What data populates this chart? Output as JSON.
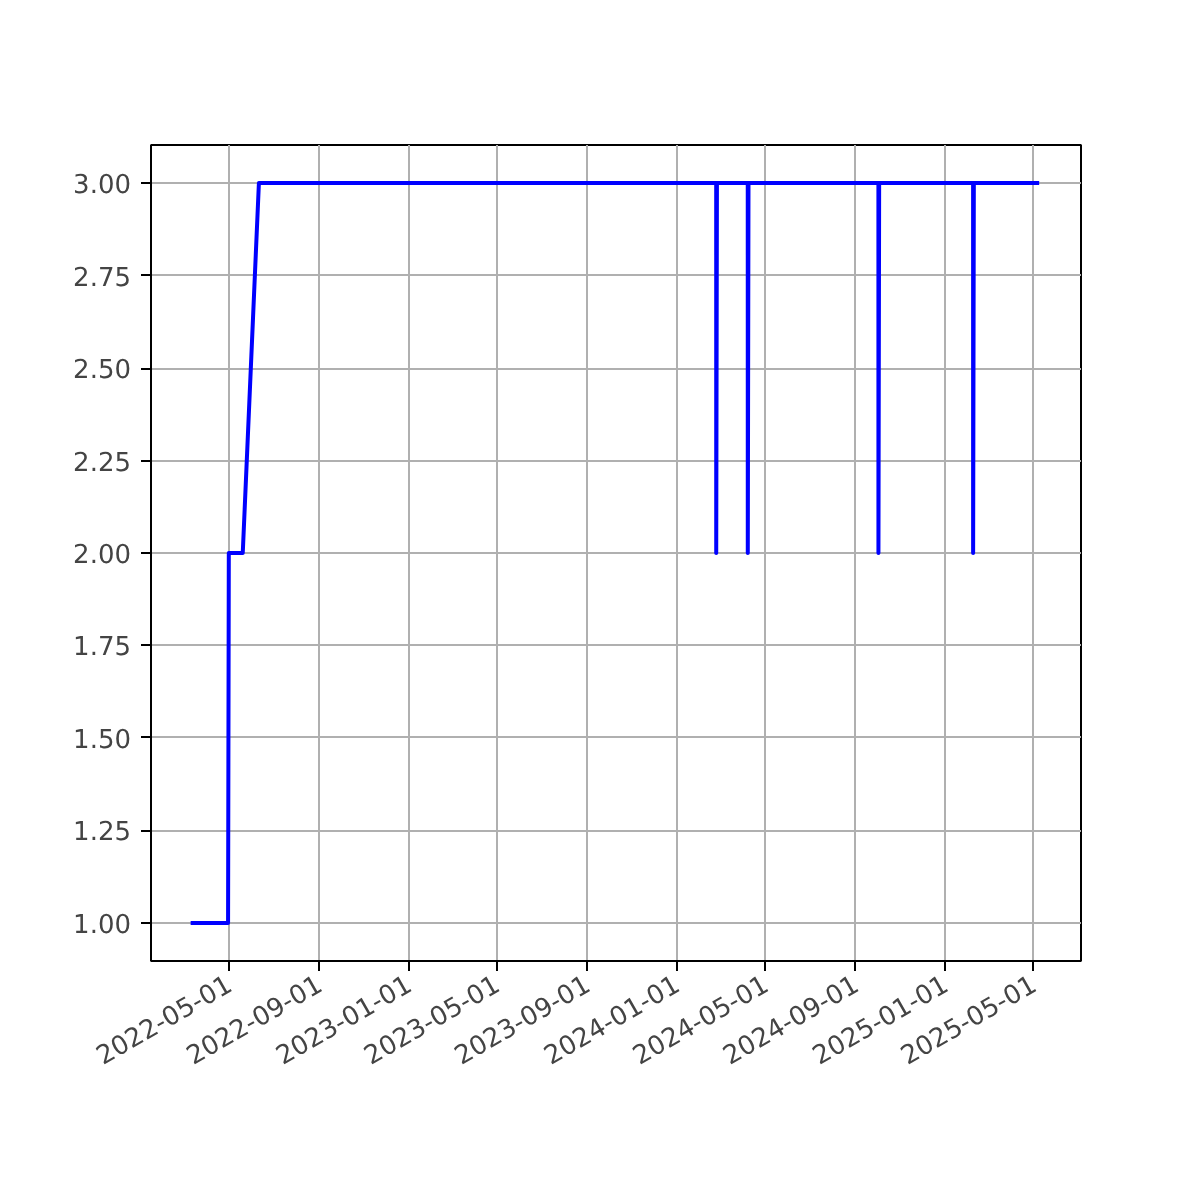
{
  "chart_data": {
    "type": "line",
    "x": [
      "2022-03-10",
      "2022-04-30",
      "2022-05-01",
      "2022-05-20",
      "2022-06-11",
      "2024-02-24",
      "2024-02-24T01:00",
      "2024-02-25",
      "2024-04-07",
      "2024-04-07T01:00",
      "2024-04-08",
      "2024-10-02",
      "2024-10-02T01:00",
      "2024-10-03",
      "2025-02-08",
      "2025-02-08T01:00",
      "2025-02-09",
      "2025-05-09"
    ],
    "series": [
      {
        "color": "#0000ff",
        "values": [
          1,
          1,
          2,
          2,
          3,
          3,
          2,
          3,
          3,
          2,
          3,
          3,
          2,
          3,
          3,
          2,
          3,
          3
        ]
      }
    ],
    "xlim": [
      "2022-01-15",
      "2025-07-05"
    ],
    "ylim": [
      0.897,
      3.103
    ],
    "xticks": [
      "2022-05-01",
      "2022-09-01",
      "2023-01-01",
      "2023-05-01",
      "2023-09-01",
      "2024-01-01",
      "2024-05-01",
      "2024-09-01",
      "2025-01-01",
      "2025-05-01"
    ],
    "yticks": [
      {
        "value": 1,
        "label": "1.00"
      },
      {
        "value": 1.25,
        "label": "1.25"
      },
      {
        "value": 1.5,
        "label": "1.50"
      },
      {
        "value": 1.75,
        "label": "1.75"
      },
      {
        "value": 2,
        "label": "2.00"
      },
      {
        "value": 2.25,
        "label": "2.25"
      },
      {
        "value": 2.5,
        "label": "2.50"
      },
      {
        "value": 2.75,
        "label": "2.75"
      },
      {
        "value": 3,
        "label": "3.00"
      }
    ],
    "grid": true,
    "marker": "none",
    "line_style": "solid"
  }
}
